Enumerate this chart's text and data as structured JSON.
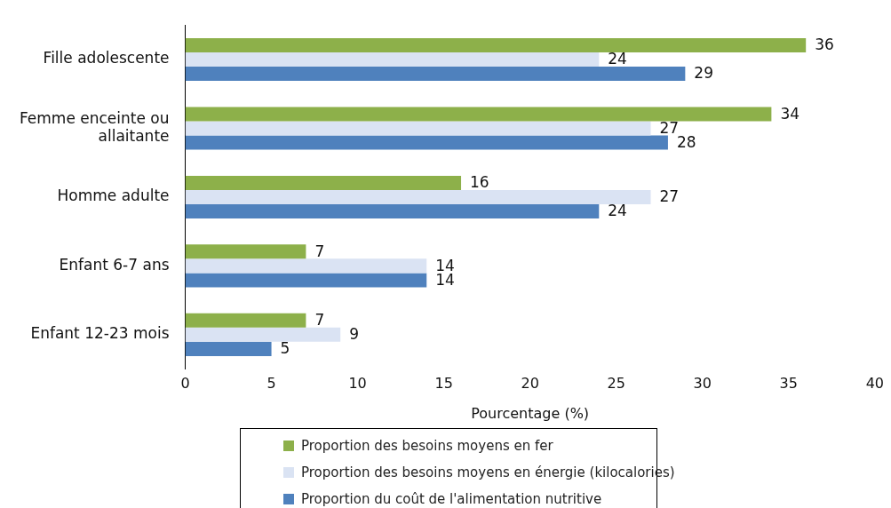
{
  "chart_data": {
    "type": "bar",
    "orientation": "horizontal",
    "xlabel": "Pourcentage (%)",
    "categories": [
      "Fille adolescente",
      "Femme enceinte ou allaitante",
      "Homme adulte",
      "Enfant 6-7 ans",
      "Enfant 12-23 mois"
    ],
    "series": [
      {
        "name": "Proportion des besoins moyens en fer",
        "color": "#8db04a",
        "values": [
          36,
          34,
          16,
          7,
          7
        ]
      },
      {
        "name": "Proportion des besoins moyens en énergie (kilocalories)",
        "color": "#dae3f3",
        "values": [
          24,
          27,
          27,
          14,
          9
        ]
      },
      {
        "name": "Proportion du coût de l'alimentation nutritive",
        "color": "#4f81bd",
        "values": [
          29,
          28,
          24,
          14,
          5
        ]
      }
    ],
    "xlim": [
      0,
      40
    ],
    "xticks": [
      0,
      5,
      10,
      15,
      20,
      25,
      30,
      35,
      40
    ],
    "grid": false,
    "legend": "bottom",
    "data_labels": true
  }
}
